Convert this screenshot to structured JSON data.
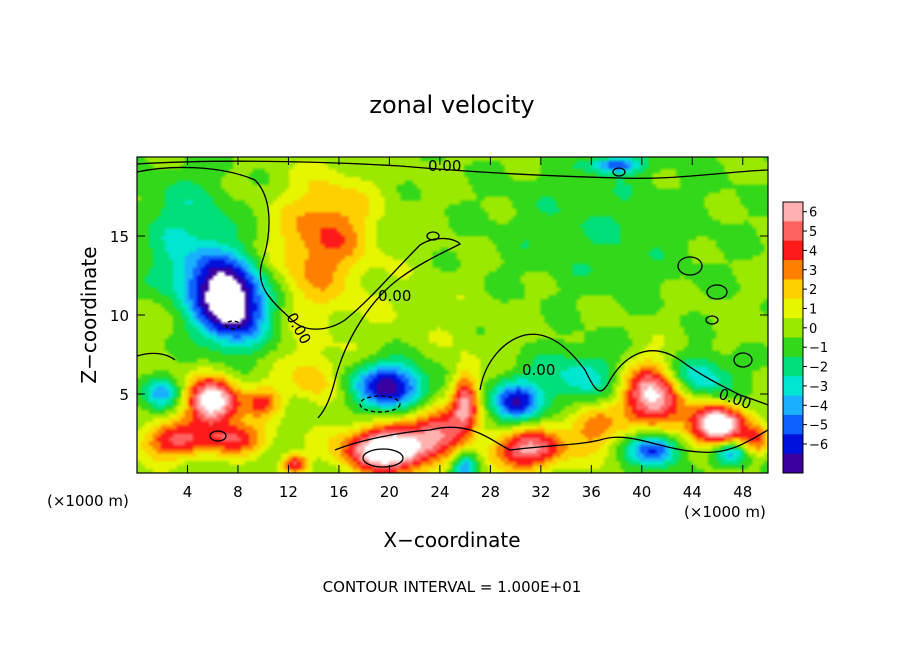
{
  "chart_data": {
    "type": "heatmap",
    "title": "zonal velocity",
    "xlabel": "X−coordinate",
    "ylabel": "Z−coordinate",
    "x_unit_left": "(×1000 m)",
    "x_unit_right": "(×1000 m)",
    "xlim": [
      0,
      50
    ],
    "ylim": [
      0,
      20
    ],
    "x_ticks": [
      "4",
      "8",
      "12",
      "16",
      "20",
      "24",
      "28",
      "32",
      "36",
      "40",
      "44",
      "48"
    ],
    "y_ticks": [
      "5",
      "10",
      "15"
    ],
    "colorbar": {
      "ticks": [
        "6",
        "5",
        "4",
        "3",
        "2",
        "1",
        "0",
        "−1",
        "−2",
        "−3",
        "−4",
        "−5",
        "−6"
      ],
      "colors": [
        "#ffb0b0",
        "#ff6060",
        "#ff1a1a",
        "#ff7f00",
        "#ffd000",
        "#e6f500",
        "#9be800",
        "#33d81a",
        "#00e07a",
        "#00e6d0",
        "#1ab0ff",
        "#1060ff",
        "#0010dd",
        "#3a00a0"
      ]
    },
    "contour_labels": [
      "0.00",
      "0.00",
      "0.00",
      "0.00",
      "0.00"
    ],
    "footer": "CONTOUR INTERVAL = 1.000E+01",
    "blobs": [
      {
        "x": 25,
        "y": 10,
        "sx": 30,
        "sy": 12,
        "v": 0.6
      },
      {
        "x": 14,
        "y": 14,
        "sx": 3.5,
        "sy": 4,
        "v": 2.2
      },
      {
        "x": 16,
        "y": 16,
        "sx": 3,
        "sy": 3,
        "v": 1.4
      },
      {
        "x": 4,
        "y": 16,
        "sx": 4,
        "sy": 3,
        "v": -1.8
      },
      {
        "x": 36,
        "y": 15,
        "sx": 10,
        "sy": 5,
        "v": -1.2
      },
      {
        "x": 7.5,
        "y": 10.5,
        "sx": 2.8,
        "sy": 2.4,
        "v": -7.5
      },
      {
        "x": 5.5,
        "y": 12.5,
        "sx": 3.5,
        "sy": 2,
        "v": -3
      },
      {
        "x": 20,
        "y": 5.5,
        "sx": 3,
        "sy": 1.5,
        "v": -6
      },
      {
        "x": 30,
        "y": 4.5,
        "sx": 2,
        "sy": 1.3,
        "v": -5
      },
      {
        "x": 35,
        "y": 6,
        "sx": 4,
        "sy": 2,
        "v": -2.5
      },
      {
        "x": 44,
        "y": 6,
        "sx": 3,
        "sy": 1.5,
        "v": -3.5
      },
      {
        "x": 41,
        "y": 1.5,
        "sx": 2,
        "sy": 1,
        "v": -5
      },
      {
        "x": 47,
        "y": 1.3,
        "sx": 1.5,
        "sy": 0.8,
        "v": -4
      },
      {
        "x": 26,
        "y": 0.5,
        "sx": 1,
        "sy": 1,
        "v": -4
      },
      {
        "x": 2,
        "y": 5,
        "sx": 1.5,
        "sy": 1,
        "v": -3
      },
      {
        "x": 6,
        "y": 4.5,
        "sx": 2,
        "sy": 1.5,
        "v": 7
      },
      {
        "x": 3,
        "y": 2,
        "sx": 3,
        "sy": 1.2,
        "v": 4
      },
      {
        "x": 8,
        "y": 2.2,
        "sx": 2.5,
        "sy": 1,
        "v": 3.5
      },
      {
        "x": 10,
        "y": 4.5,
        "sx": 1.5,
        "sy": 1,
        "v": 3
      },
      {
        "x": 20,
        "y": 1.5,
        "sx": 3.5,
        "sy": 1.4,
        "v": 8
      },
      {
        "x": 24,
        "y": 3,
        "sx": 2,
        "sy": 1.5,
        "v": 4
      },
      {
        "x": 26,
        "y": 4.5,
        "sx": 1,
        "sy": 2,
        "v": 4.5
      },
      {
        "x": 31,
        "y": 1.5,
        "sx": 3,
        "sy": 1.3,
        "v": 5
      },
      {
        "x": 41,
        "y": 5,
        "sx": 2.5,
        "sy": 2,
        "v": 7
      },
      {
        "x": 46,
        "y": 3,
        "sx": 2,
        "sy": 1.3,
        "v": 8
      },
      {
        "x": 36,
        "y": 3,
        "sx": 2,
        "sy": 1.5,
        "v": 3
      },
      {
        "x": 12.5,
        "y": 0.6,
        "sx": 1,
        "sy": 0.6,
        "v": 4
      },
      {
        "x": 49,
        "y": 2,
        "sx": 1.2,
        "sy": 1,
        "v": 3
      },
      {
        "x": 14,
        "y": 6,
        "sx": 2,
        "sy": 1.5,
        "v": 2
      },
      {
        "x": 38,
        "y": 19.5,
        "sx": 2,
        "sy": 0.5,
        "v": -4
      }
    ]
  }
}
